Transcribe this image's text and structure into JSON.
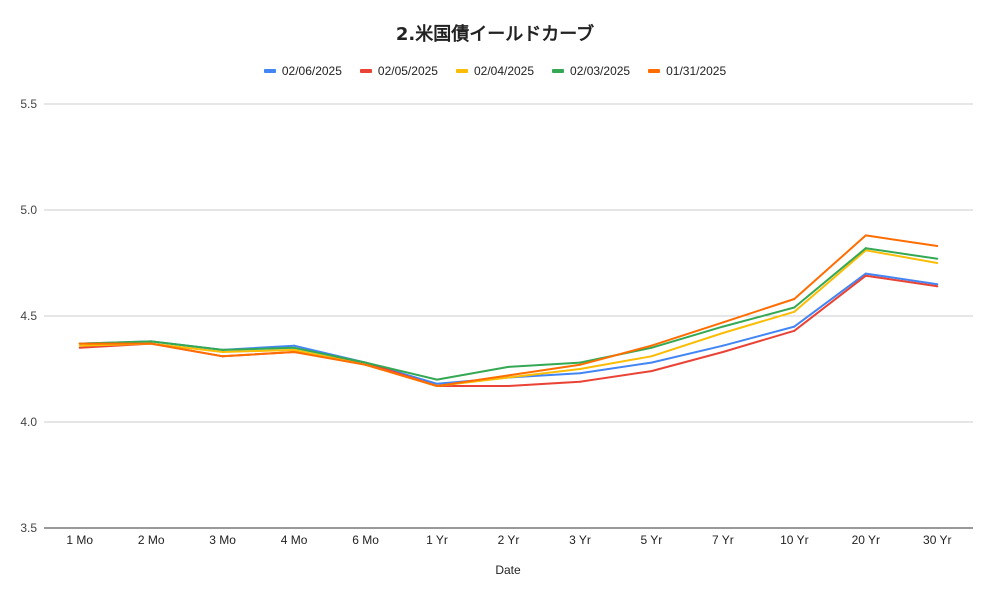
{
  "chart_data": {
    "type": "line",
    "title": "2.米国債イールドカーブ",
    "xlabel": "Date",
    "ylabel": "",
    "ylim": [
      3.5,
      5.5
    ],
    "yticks": [
      "3.5",
      "4.0",
      "4.5",
      "5.0",
      "5.5"
    ],
    "grid": true,
    "legend_position": "top",
    "categories": [
      "1 Mo",
      "2 Mo",
      "3 Mo",
      "4 Mo",
      "6 Mo",
      "1 Yr",
      "2 Yr",
      "3 Yr",
      "5 Yr",
      "7 Yr",
      "10 Yr",
      "20 Yr",
      "30 Yr"
    ],
    "series": [
      {
        "name": "02/06/2025",
        "color": "#4285f4",
        "values": [
          4.37,
          4.38,
          4.34,
          4.36,
          4.28,
          4.18,
          4.21,
          4.23,
          4.28,
          4.36,
          4.45,
          4.7,
          4.65
        ]
      },
      {
        "name": "02/05/2025",
        "color": "#ea4335",
        "values": [
          4.35,
          4.37,
          4.31,
          4.33,
          4.28,
          4.17,
          4.17,
          4.19,
          4.24,
          4.33,
          4.43,
          4.69,
          4.64
        ]
      },
      {
        "name": "02/04/2025",
        "color": "#fbbc04",
        "values": [
          4.36,
          4.37,
          4.33,
          4.34,
          4.27,
          4.17,
          4.21,
          4.25,
          4.31,
          4.42,
          4.52,
          4.81,
          4.75
        ]
      },
      {
        "name": "02/03/2025",
        "color": "#34a853",
        "values": [
          4.37,
          4.38,
          4.34,
          4.35,
          4.28,
          4.2,
          4.26,
          4.28,
          4.35,
          4.45,
          4.54,
          4.82,
          4.77
        ]
      },
      {
        "name": "01/31/2025",
        "color": "#ff6d01",
        "values": [
          4.37,
          4.37,
          4.31,
          4.33,
          4.27,
          4.17,
          4.22,
          4.27,
          4.36,
          4.47,
          4.58,
          4.88,
          4.83
        ]
      }
    ]
  }
}
